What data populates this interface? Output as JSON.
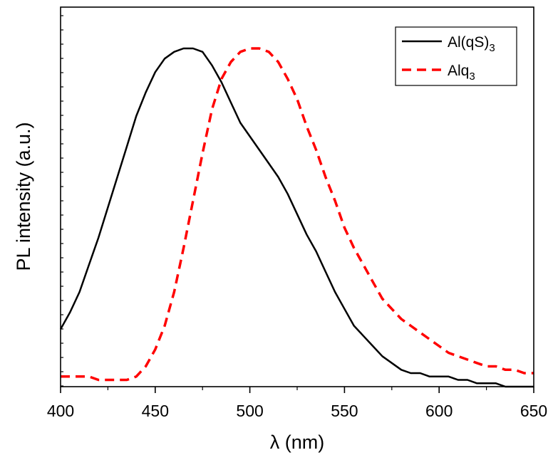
{
  "chart_data": {
    "type": "line",
    "title": "",
    "xlabel": "λ (nm)",
    "ylabel": "PL intensity (a.u.)",
    "xlim": [
      400,
      650
    ],
    "ylim": [
      0,
      1.0
    ],
    "y_tick_labels_shown": false,
    "x_ticks": [
      400,
      450,
      500,
      550,
      600,
      650
    ],
    "x_tick_labels": [
      "400",
      "450",
      "500",
      "550",
      "600",
      "650"
    ],
    "grid": false,
    "legend": {
      "placement": "top-right"
    },
    "series": [
      {
        "name": "Al(qS)3",
        "name_base": "Al(qS)",
        "name_sub": "3",
        "color": "#000000",
        "line_style": "solid",
        "x": [
          400,
          405,
          410,
          415,
          420,
          425,
          430,
          435,
          440,
          445,
          450,
          455,
          460,
          465,
          470,
          475,
          480,
          485,
          490,
          495,
          500,
          505,
          510,
          515,
          520,
          525,
          530,
          535,
          540,
          545,
          550,
          555,
          560,
          565,
          570,
          575,
          580,
          585,
          590,
          595,
          600,
          605,
          610,
          615,
          620,
          625,
          630,
          635,
          640,
          645,
          650
        ],
        "y": [
          0.17,
          0.22,
          0.28,
          0.36,
          0.44,
          0.53,
          0.62,
          0.71,
          0.8,
          0.87,
          0.93,
          0.97,
          0.99,
          1.0,
          1.0,
          0.99,
          0.95,
          0.9,
          0.84,
          0.78,
          0.74,
          0.7,
          0.66,
          0.62,
          0.57,
          0.51,
          0.45,
          0.4,
          0.34,
          0.28,
          0.23,
          0.18,
          0.15,
          0.12,
          0.09,
          0.07,
          0.05,
          0.04,
          0.04,
          0.03,
          0.03,
          0.03,
          0.02,
          0.02,
          0.01,
          0.01,
          0.01,
          0.0,
          0.0,
          0.0,
          0.0
        ]
      },
      {
        "name": "Alq3",
        "name_base": "Alq",
        "name_sub": "3",
        "color": "#ff0000",
        "line_style": "dashed",
        "x": [
          400,
          405,
          410,
          415,
          420,
          425,
          430,
          435,
          440,
          445,
          450,
          455,
          460,
          465,
          470,
          475,
          480,
          485,
          490,
          495,
          500,
          505,
          510,
          515,
          520,
          525,
          530,
          535,
          540,
          545,
          550,
          555,
          560,
          565,
          570,
          575,
          580,
          585,
          590,
          595,
          600,
          605,
          610,
          615,
          620,
          625,
          630,
          635,
          640,
          645,
          650
        ],
        "y": [
          0.03,
          0.03,
          0.03,
          0.03,
          0.02,
          0.02,
          0.02,
          0.02,
          0.03,
          0.06,
          0.11,
          0.18,
          0.28,
          0.41,
          0.55,
          0.69,
          0.82,
          0.91,
          0.96,
          0.99,
          1.0,
          1.0,
          0.99,
          0.96,
          0.91,
          0.85,
          0.77,
          0.7,
          0.62,
          0.55,
          0.47,
          0.41,
          0.36,
          0.31,
          0.26,
          0.23,
          0.2,
          0.18,
          0.16,
          0.14,
          0.12,
          0.1,
          0.09,
          0.08,
          0.07,
          0.06,
          0.06,
          0.05,
          0.05,
          0.04,
          0.04
        ]
      }
    ]
  }
}
